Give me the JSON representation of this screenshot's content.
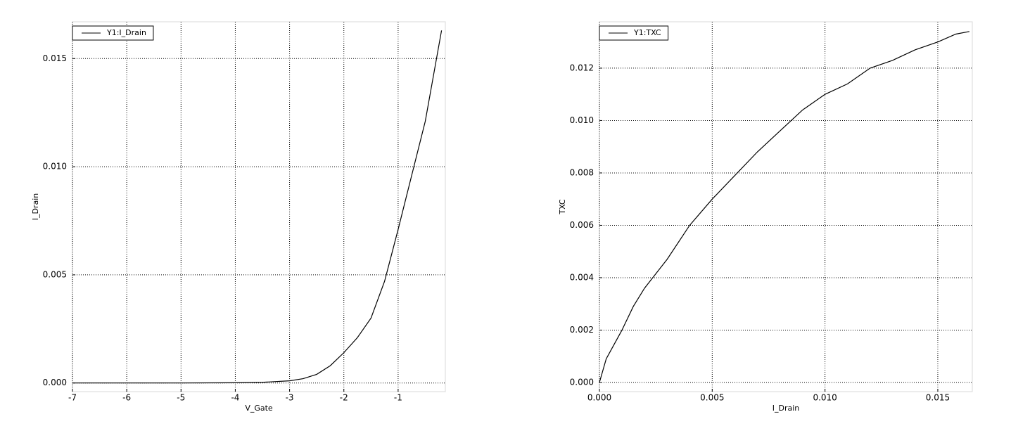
{
  "chart_data": [
    {
      "type": "line",
      "xlabel": "V_Gate",
      "ylabel": "I_Drain",
      "x": [
        -7,
        -6,
        -5,
        -4,
        -3.5,
        -3,
        -2.75,
        -2.5,
        -2.25,
        -2,
        -1.75,
        -1.5,
        -1.25,
        -1,
        -0.75,
        -0.5,
        -0.2
      ],
      "series": [
        {
          "name": "Y1:I_Drain",
          "color": "#000000",
          "values": [
            0,
            0,
            0,
            1e-05,
            3e-05,
            0.0001,
            0.0002,
            0.0004,
            0.0008,
            0.0014,
            0.0021,
            0.003,
            0.0047,
            0.0071,
            0.0096,
            0.0121,
            0.0163
          ]
        }
      ],
      "xlim": [
        -7,
        -0.13
      ],
      "ylim": [
        -0.0004,
        0.0167
      ],
      "xticks": [
        -7,
        -6,
        -5,
        -4,
        -3,
        -2,
        -1
      ],
      "yticks": [
        {
          "value": 0,
          "label": "0.000"
        },
        0.005,
        {
          "value": 0.01,
          "label": "0.010"
        },
        0.015
      ],
      "grid": true,
      "legend": "upper left"
    },
    {
      "type": "line",
      "xlabel": "I_Drain",
      "ylabel": "TXC",
      "x": [
        0,
        0.0003,
        0.001,
        0.0015,
        0.002,
        0.003,
        0.004,
        0.005,
        0.006,
        0.007,
        0.008,
        0.009,
        0.01,
        0.011,
        0.012,
        0.013,
        0.014,
        0.015,
        0.0158,
        0.0164
      ],
      "series": [
        {
          "name": "Y1:TXC",
          "color": "#000000",
          "values": [
            0,
            0.0009,
            0.002,
            0.0029,
            0.0036,
            0.0047,
            0.006,
            0.007,
            0.0079,
            0.0088,
            0.0096,
            0.0104,
            0.011,
            0.0114,
            0.012,
            0.0123,
            0.0127,
            0.013,
            0.0133,
            0.0134
          ]
        }
      ],
      "xlim": [
        0,
        0.01653
      ],
      "ylim": [
        -0.00035,
        0.01377
      ],
      "xticks": [
        {
          "value": 0,
          "label": "0.000"
        },
        0.005,
        {
          "value": 0.01,
          "label": "0.010"
        },
        0.015
      ],
      "yticks": [
        {
          "value": 0,
          "label": "0.000"
        },
        0.002,
        0.004,
        0.006,
        0.008,
        {
          "value": 0.01,
          "label": "0.010"
        },
        0.012
      ],
      "grid": true,
      "legend": "upper left"
    }
  ]
}
